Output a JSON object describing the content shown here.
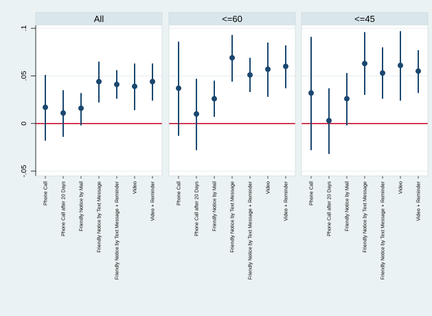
{
  "chart_data": {
    "type": "scatter",
    "subtype": "point-estimates-with-confidence-intervals",
    "categories": [
      "Phone Call",
      "Phone Call after 20 Days",
      "Friendly Notice by Mail",
      "Friendly Notice by Text Message",
      "Friendly Notice by Text Message + Reminder",
      "Video",
      "Video + Reminder"
    ],
    "ylim": [
      -0.055,
      0.103
    ],
    "yticks": [
      -0.05,
      0,
      0.05,
      0.1
    ],
    "ytick_labels": [
      "-.05",
      "0",
      ".05",
      ".1"
    ],
    "reference_line": {
      "y": 0,
      "color": "#c8102e"
    },
    "grid": true,
    "colors": {
      "point": "#1a476f",
      "strip": "#d9e6eb",
      "background": "#eaf2f3",
      "plot_area": "#ffffff",
      "grid": "#e4ecef"
    },
    "panels": [
      {
        "title": "All",
        "points": [
          {
            "estimate": 0.017,
            "ci": [
              -0.018,
              0.051
            ]
          },
          {
            "estimate": 0.011,
            "ci": [
              -0.014,
              0.035
            ]
          },
          {
            "estimate": 0.016,
            "ci": [
              -0.002,
              0.032
            ]
          },
          {
            "estimate": 0.044,
            "ci": [
              0.022,
              0.065
            ]
          },
          {
            "estimate": 0.041,
            "ci": [
              0.026,
              0.056
            ]
          },
          {
            "estimate": 0.039,
            "ci": [
              0.014,
              0.063
            ]
          },
          {
            "estimate": 0.044,
            "ci": [
              0.024,
              0.063
            ]
          }
        ]
      },
      {
        "title": "<=60",
        "points": [
          {
            "estimate": 0.037,
            "ci": [
              -0.013,
              0.086
            ]
          },
          {
            "estimate": 0.01,
            "ci": [
              -0.028,
              0.047
            ]
          },
          {
            "estimate": 0.026,
            "ci": [
              0.007,
              0.045
            ]
          },
          {
            "estimate": 0.069,
            "ci": [
              0.044,
              0.093
            ]
          },
          {
            "estimate": 0.051,
            "ci": [
              0.033,
              0.069
            ]
          },
          {
            "estimate": 0.057,
            "ci": [
              0.028,
              0.085
            ]
          },
          {
            "estimate": 0.06,
            "ci": [
              0.037,
              0.082
            ]
          }
        ]
      },
      {
        "title": "<=45",
        "points": [
          {
            "estimate": 0.032,
            "ci": [
              -0.028,
              0.091
            ]
          },
          {
            "estimate": 0.003,
            "ci": [
              -0.032,
              0.037
            ]
          },
          {
            "estimate": 0.026,
            "ci": [
              -0.002,
              0.053
            ]
          },
          {
            "estimate": 0.063,
            "ci": [
              0.03,
              0.096
            ]
          },
          {
            "estimate": 0.053,
            "ci": [
              0.026,
              0.08
            ]
          },
          {
            "estimate": 0.061,
            "ci": [
              0.024,
              0.097
            ]
          },
          {
            "estimate": 0.055,
            "ci": [
              0.032,
              0.077
            ]
          }
        ]
      }
    ]
  }
}
